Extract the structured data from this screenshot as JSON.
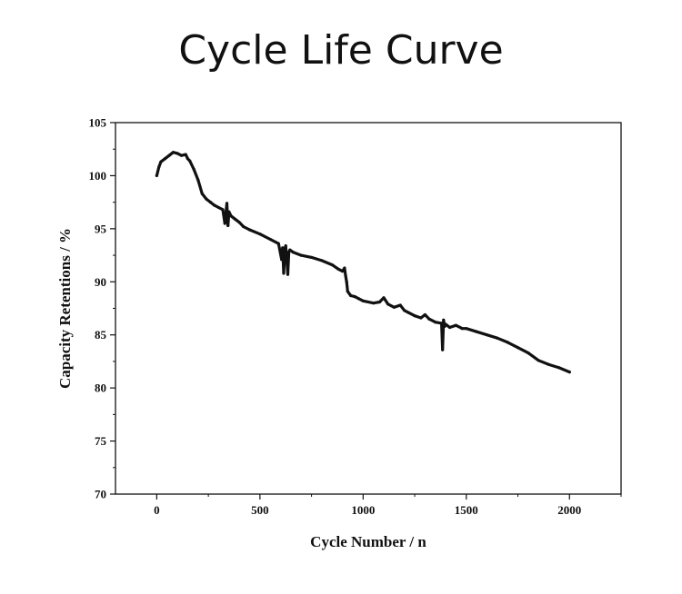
{
  "page": {
    "title": "Cycle Life Curve"
  },
  "chart_data": {
    "type": "line",
    "title": "Cycle Life Curve",
    "xlabel": "Cycle Number / n",
    "ylabel": "Capacity Retentions / %",
    "xlim": [
      -200,
      2250
    ],
    "ylim": [
      70,
      105
    ],
    "xticks": [
      0,
      500,
      1000,
      1500,
      2000
    ],
    "yticks": [
      70,
      75,
      80,
      85,
      90,
      95,
      100,
      105
    ],
    "grid": false,
    "legend": "none",
    "series": [
      {
        "name": "Capacity retention",
        "color": "#111111",
        "x": [
          0,
          10,
          20,
          40,
          60,
          80,
          100,
          120,
          140,
          150,
          160,
          180,
          200,
          220,
          240,
          260,
          280,
          300,
          320,
          330,
          340,
          345,
          350,
          360,
          380,
          400,
          420,
          450,
          500,
          550,
          590,
          605,
          610,
          615,
          620,
          625,
          635,
          640,
          645,
          660,
          700,
          750,
          800,
          850,
          880,
          900,
          910,
          915,
          920,
          925,
          940,
          960,
          980,
          1000,
          1050,
          1080,
          1100,
          1120,
          1150,
          1180,
          1200,
          1220,
          1250,
          1280,
          1300,
          1320,
          1350,
          1380,
          1385,
          1390,
          1395,
          1400,
          1420,
          1450,
          1480,
          1500,
          1550,
          1600,
          1650,
          1700,
          1750,
          1800,
          1850,
          1900,
          1950,
          2000
        ],
        "y": [
          100.0,
          100.8,
          101.3,
          101.6,
          101.9,
          102.2,
          102.1,
          101.9,
          102.0,
          101.6,
          101.4,
          100.6,
          99.6,
          98.3,
          97.8,
          97.5,
          97.2,
          97.0,
          96.8,
          95.5,
          97.4,
          95.3,
          96.6,
          96.2,
          95.9,
          95.6,
          95.2,
          94.9,
          94.5,
          94.0,
          93.6,
          92.1,
          93.2,
          90.8,
          93.0,
          93.4,
          90.7,
          92.8,
          93.0,
          92.8,
          92.5,
          92.3,
          92.0,
          91.6,
          91.2,
          91.0,
          91.3,
          90.6,
          90.0,
          89.1,
          88.7,
          88.6,
          88.4,
          88.2,
          88.0,
          88.1,
          88.5,
          87.9,
          87.6,
          87.8,
          87.3,
          87.1,
          86.8,
          86.6,
          86.9,
          86.5,
          86.2,
          86.1,
          83.6,
          86.4,
          85.8,
          86.0,
          85.7,
          85.9,
          85.6,
          85.6,
          85.3,
          85.0,
          84.7,
          84.3,
          83.8,
          83.3,
          82.6,
          82.2,
          81.9,
          81.5
        ]
      }
    ]
  }
}
